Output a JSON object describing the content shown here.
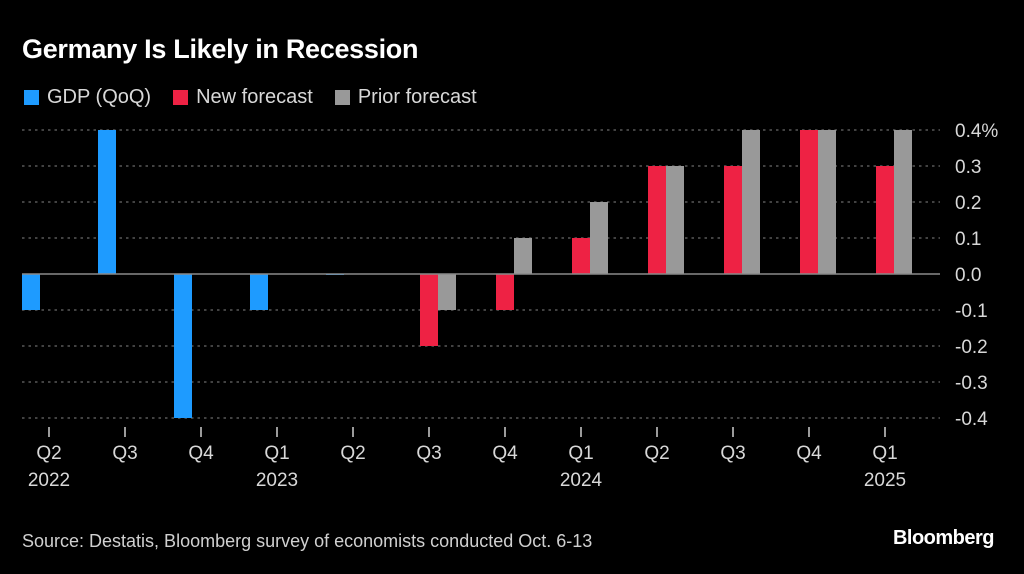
{
  "header": {
    "title": "Germany Is Likely in Recession"
  },
  "legend": [
    {
      "label": "GDP (QoQ)",
      "color": "#1e9bff"
    },
    {
      "label": "New forecast",
      "color": "#ee2244"
    },
    {
      "label": "Prior forecast",
      "color": "#999999"
    }
  ],
  "footer": {
    "source": "Source: Destatis, Bloomberg survey of economists conducted Oct. 6-13",
    "brand": "Bloomberg"
  },
  "chart_data": {
    "type": "bar",
    "title": "Germany Is Likely in Recession",
    "xlabel": "",
    "ylabel": "",
    "y_unit_suffix": "%",
    "ylim": [
      -0.4,
      0.4
    ],
    "yticks": [
      0.4,
      0.3,
      0.2,
      0.1,
      0.0,
      -0.1,
      -0.2,
      -0.3,
      -0.4
    ],
    "ytick_labels": [
      "0.4%",
      "0.3",
      "0.2",
      "0.1",
      "0.0",
      "-0.1",
      "-0.2",
      "-0.3",
      "-0.4"
    ],
    "grid": true,
    "legend_position": "top-left",
    "categories": [
      "Q2 2022",
      "Q3 2022",
      "Q4 2022",
      "Q1 2023",
      "Q2 2023",
      "Q3 2023",
      "Q4 2023",
      "Q1 2024",
      "Q2 2024",
      "Q3 2024",
      "Q4 2024",
      "Q1 2025"
    ],
    "tick_labels": [
      "Q2",
      "Q3",
      "Q4",
      "Q1",
      "Q2",
      "Q3",
      "Q4",
      "Q1",
      "Q2",
      "Q3",
      "Q4",
      "Q1"
    ],
    "year_labels": [
      "2022",
      "",
      "",
      "2023",
      "",
      "",
      "",
      "2024",
      "",
      "",
      "",
      "2025"
    ],
    "series": [
      {
        "name": "GDP (QoQ)",
        "color": "#1e9bff",
        "values": [
          -0.1,
          0.4,
          -0.4,
          -0.1,
          0.0,
          null,
          null,
          null,
          null,
          null,
          null,
          null
        ]
      },
      {
        "name": "New forecast",
        "color": "#ee2244",
        "values": [
          null,
          null,
          null,
          null,
          null,
          -0.2,
          -0.1,
          0.1,
          0.3,
          0.3,
          0.4,
          0.3
        ]
      },
      {
        "name": "Prior forecast",
        "color": "#999999",
        "values": [
          null,
          null,
          null,
          null,
          null,
          -0.1,
          0.1,
          0.2,
          0.3,
          0.4,
          0.4,
          0.4
        ]
      }
    ]
  }
}
